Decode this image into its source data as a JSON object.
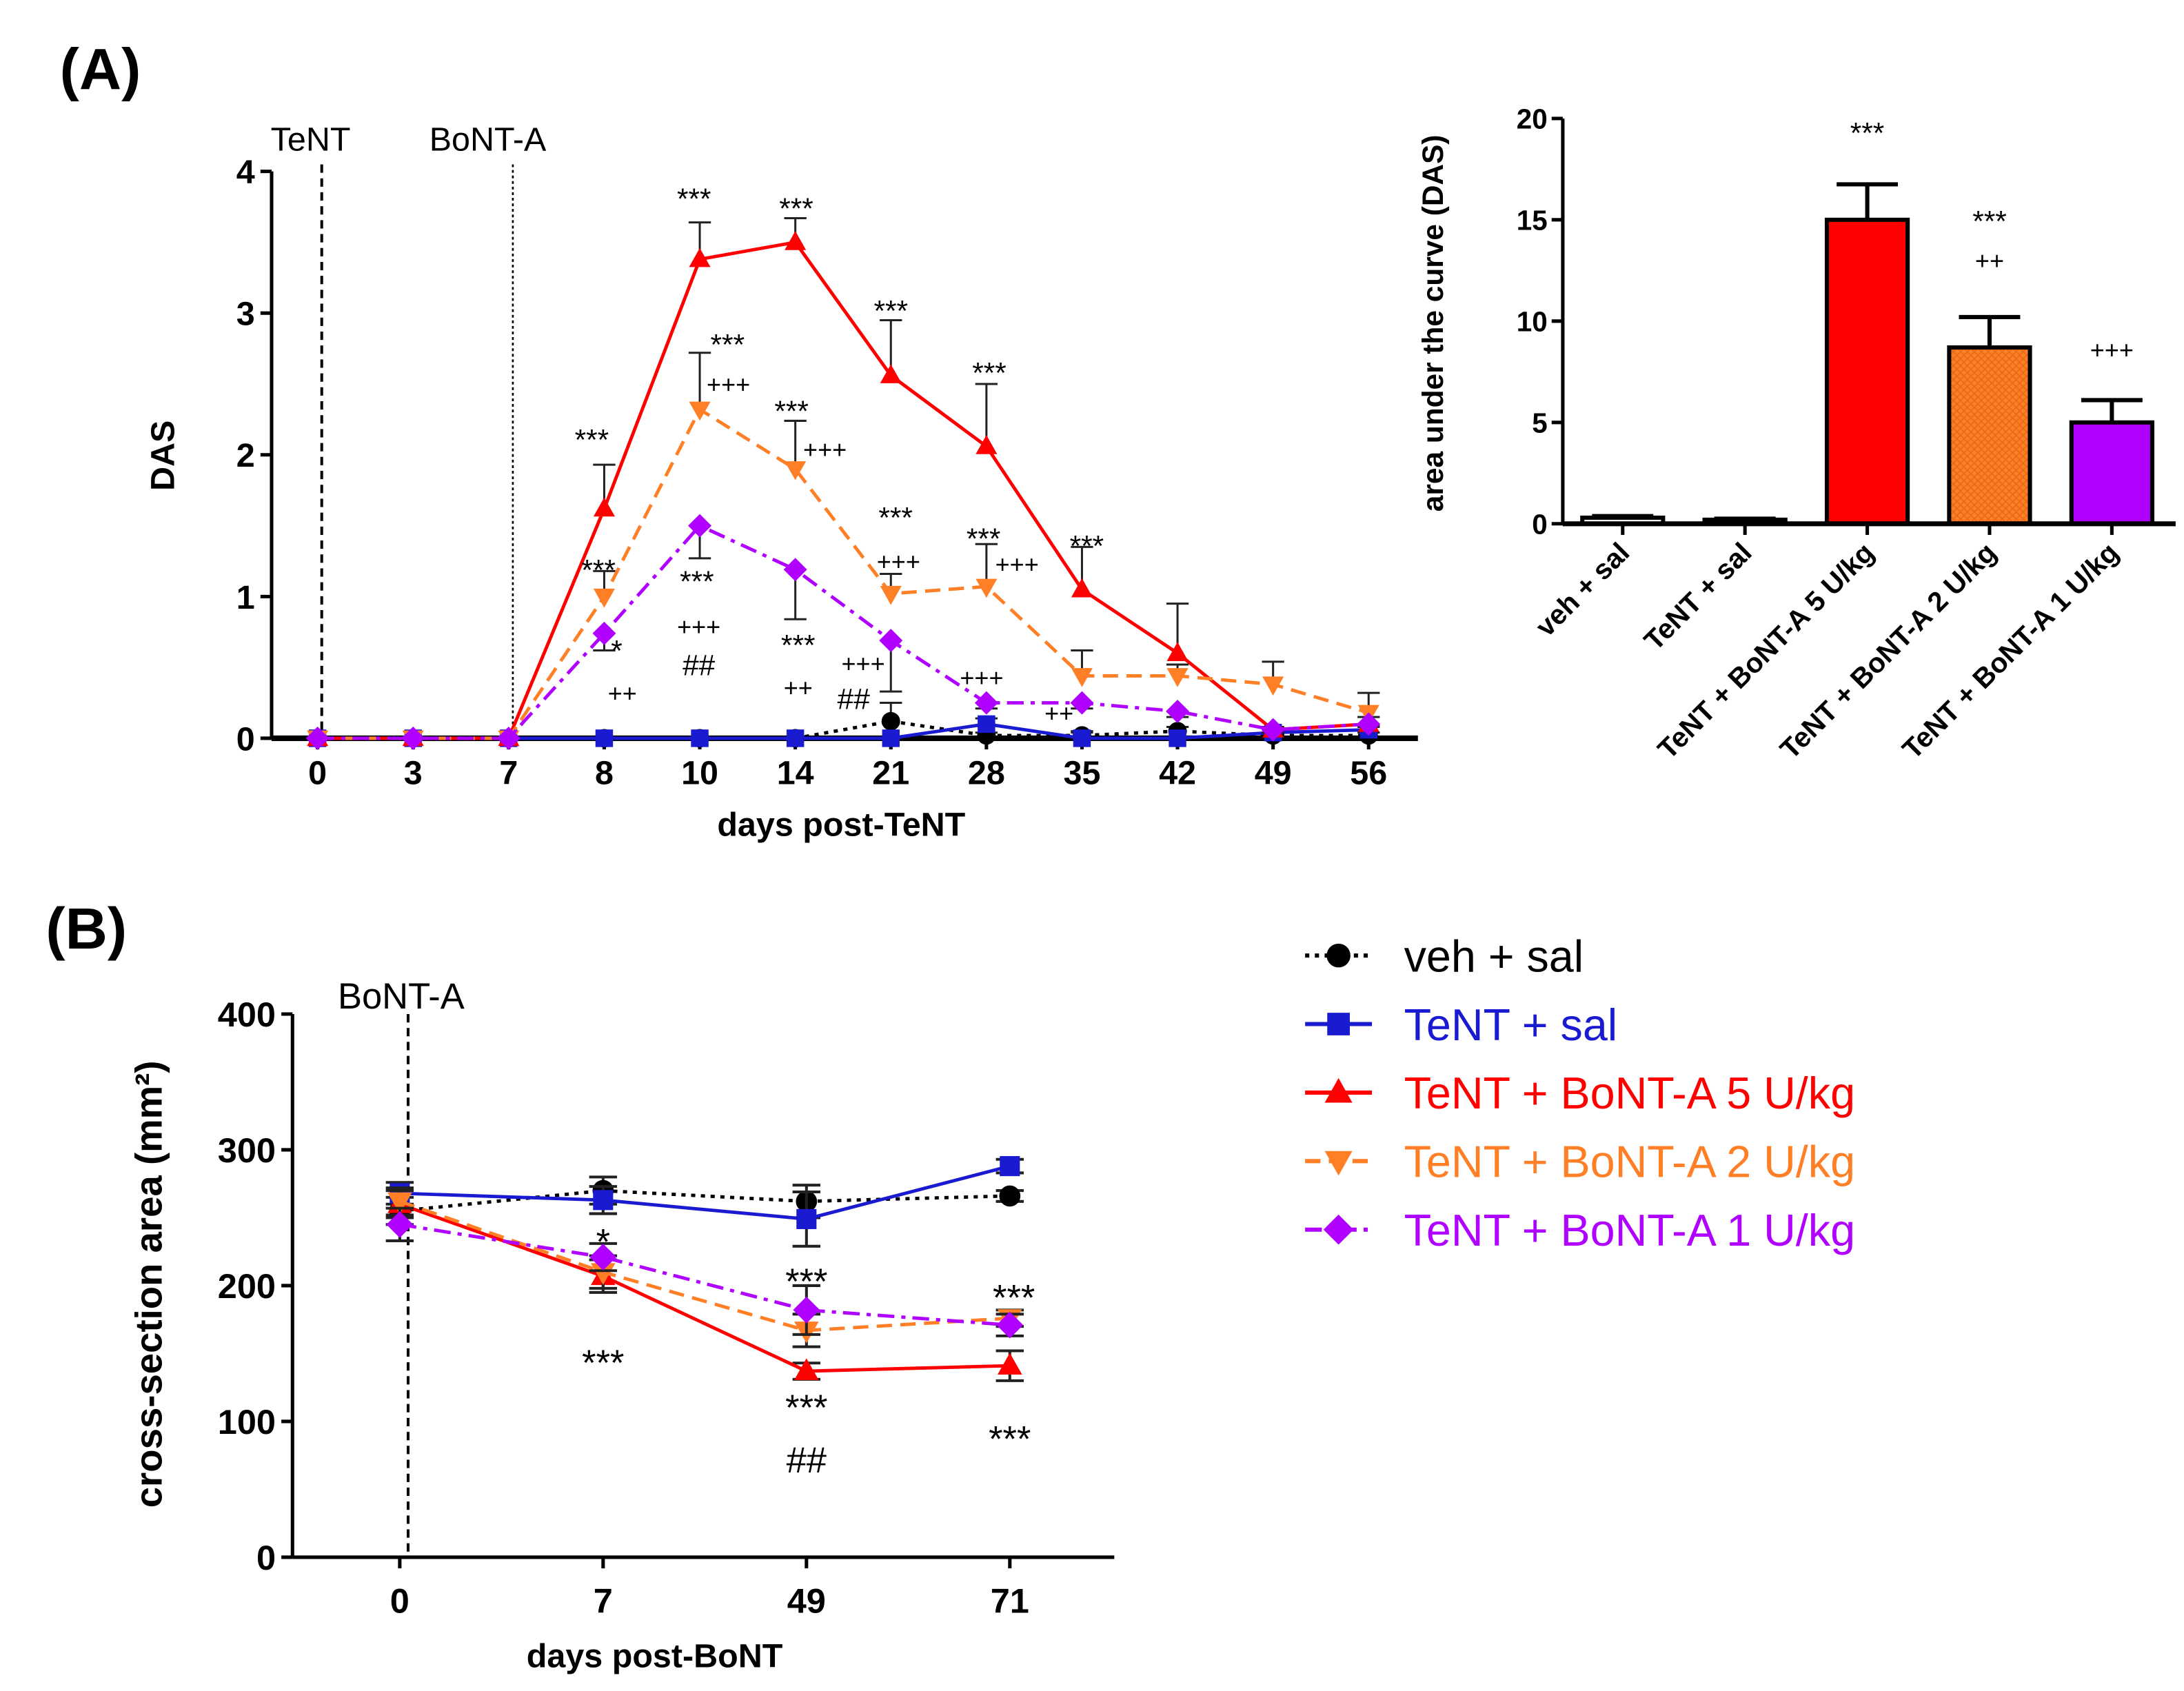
{
  "panels": {
    "a_label": "(A)",
    "b_label": "(B)"
  },
  "chart_data": [
    {
      "type": "line",
      "title": "",
      "xlabel": "days post-TeNT",
      "ylabel": "DAS",
      "categories": [
        "0",
        "3",
        "7",
        "8",
        "10",
        "14",
        "21",
        "28",
        "35",
        "42",
        "49",
        "56"
      ],
      "ylim": [
        0,
        4
      ],
      "yticks": [
        0,
        1,
        2,
        3,
        4
      ],
      "vlines": [
        {
          "x": "0",
          "label": "TeNT",
          "style": "dashed"
        },
        {
          "x": "7",
          "label": "BoNT-A",
          "style": "dotted"
        }
      ],
      "series": [
        {
          "name": "veh + sal",
          "color": "#000000",
          "marker": "circle",
          "dash": "dotted",
          "values": [
            0,
            0,
            0,
            0,
            0,
            0,
            0.12,
            0.02,
            0.02,
            0.05,
            0.02,
            0.02
          ],
          "err_upper": [
            0,
            0,
            0,
            0,
            0,
            0,
            0.13,
            0.02,
            0.02,
            0.03,
            0.02,
            0.02
          ],
          "err_lower": [
            0,
            0,
            0,
            0,
            0,
            0,
            0,
            0,
            0,
            0,
            0,
            0
          ]
        },
        {
          "name": "TeNT + sal",
          "color": "#1a1ad0",
          "marker": "square",
          "dash": "solid",
          "values": [
            0,
            0,
            0,
            0,
            0,
            0,
            0,
            0.1,
            0,
            0,
            0.04,
            0.06
          ],
          "err_upper": [
            0,
            0,
            0,
            0,
            0,
            0,
            0,
            0.04,
            0.05,
            0,
            0.02,
            0.03
          ],
          "err_lower": [
            0,
            0,
            0,
            0,
            0,
            0,
            0,
            0,
            0,
            0,
            0,
            0
          ]
        },
        {
          "name": "TeNT + BoNT-A 5 U/kg",
          "color": "#ff0000",
          "marker": "triangle-up",
          "dash": "solid",
          "values": [
            0,
            0,
            0,
            1.62,
            3.38,
            3.5,
            2.56,
            2.06,
            1.05,
            0.6,
            0.06,
            0.1
          ],
          "err_upper": [
            0,
            0,
            0,
            0.31,
            0.26,
            0.17,
            0.39,
            0.44,
            0.3,
            0.35,
            0.02,
            0.05
          ],
          "err_lower": [
            0,
            0,
            0,
            0,
            0,
            0,
            0,
            0,
            0,
            0,
            0,
            0
          ]
        },
        {
          "name": "TeNT + BoNT-A 2 U/kg",
          "color": "#ff7f27",
          "marker": "triangle-down",
          "dash": "dashed",
          "values": [
            0,
            0,
            0,
            1.0,
            2.32,
            1.9,
            1.02,
            1.07,
            0.44,
            0.44,
            0.38,
            0.18
          ],
          "err_upper": [
            0,
            0,
            0,
            0.18,
            0.4,
            0.34,
            0.14,
            0.3,
            0.18,
            0.08,
            0.16,
            0.14
          ],
          "err_lower": [
            0,
            0,
            0,
            0,
            0,
            0,
            0,
            0,
            0,
            0,
            0,
            0
          ]
        },
        {
          "name": "TeNT + BoNT-A 1 U/kg",
          "color": "#b000ff",
          "marker": "diamond",
          "dash": "dash-dot",
          "values": [
            0,
            0,
            0,
            0.74,
            1.5,
            1.19,
            0.69,
            0.25,
            0.25,
            0.19,
            0.06,
            0.1
          ],
          "err_upper": [
            0,
            0,
            0,
            0,
            0,
            0,
            0,
            0,
            0,
            0,
            0,
            0
          ],
          "err_lower": [
            0,
            0,
            0,
            0.12,
            0.23,
            0.35,
            0.36,
            0.04,
            0.04,
            0.04,
            0.02,
            0.02
          ]
        }
      ],
      "annotations": [
        {
          "text": "***",
          "x_index": 2.87,
          "y": 2.16
        },
        {
          "text": "***",
          "x_index": 3.94,
          "y": 3.86
        },
        {
          "text": "***",
          "x_index": 5.01,
          "y": 3.79
        },
        {
          "text": "***",
          "x_index": 6.0,
          "y": 3.07
        },
        {
          "text": "***",
          "x_index": 7.03,
          "y": 2.63
        },
        {
          "text": "***",
          "x_index": 8.05,
          "y": 1.41
        },
        {
          "text": "***",
          "x_index": 4.29,
          "y": 2.83
        },
        {
          "text": "+++",
          "x_index": 4.3,
          "y": 2.5
        },
        {
          "text": "***",
          "x_index": 4.96,
          "y": 2.36
        },
        {
          "text": "+++",
          "x_index": 5.31,
          "y": 2.04
        },
        {
          "text": "***",
          "x_index": 6.05,
          "y": 1.61
        },
        {
          "text": "+++",
          "x_index": 6.08,
          "y": 1.25
        },
        {
          "text": "***",
          "x_index": 6.97,
          "y": 1.46
        },
        {
          "text": "+++",
          "x_index": 7.32,
          "y": 1.23
        },
        {
          "text": "***",
          "x_index": 2.94,
          "y": 1.24
        },
        {
          "text": "*",
          "x_index": 3.13,
          "y": 0.67
        },
        {
          "text": "++",
          "x_index": 3.19,
          "y": 0.32
        },
        {
          "text": "***",
          "x_index": 3.97,
          "y": 1.16
        },
        {
          "text": "+++",
          "x_index": 3.99,
          "y": 0.79
        },
        {
          "text": "##",
          "x_index": 3.99,
          "y": 0.52
        },
        {
          "text": "***",
          "x_index": 5.03,
          "y": 0.71
        },
        {
          "text": "++",
          "x_index": 5.03,
          "y": 0.36
        },
        {
          "text": "+++",
          "x_index": 5.71,
          "y": 0.53
        },
        {
          "text": "##",
          "x_index": 5.61,
          "y": 0.28
        },
        {
          "text": "+++",
          "x_index": 6.95,
          "y": 0.43
        },
        {
          "text": "++",
          "x_index": 7.76,
          "y": 0.18
        }
      ]
    },
    {
      "type": "bar",
      "title": "",
      "xlabel": "",
      "ylabel": "area under the curve (DAS)",
      "categories": [
        "veh + sal",
        "TeNT + sal",
        "TeNT + BoNT-A 5 U/kg",
        "TeNT + BoNT-A 2 U/kg",
        "TeNT + BoNT-A 1 U/kg"
      ],
      "values": [
        0.3,
        0.2,
        15.0,
        8.7,
        5.0
      ],
      "err_upper": [
        0.08,
        0.05,
        1.75,
        1.5,
        1.1
      ],
      "colors": [
        "#ffffff",
        "#ffffff",
        "#ff0000",
        "#ff7f27",
        "#b000ff"
      ],
      "ylim": [
        0,
        20
      ],
      "yticks": [
        0,
        5,
        10,
        15,
        20
      ],
      "annotations": [
        {
          "text": "***",
          "x_index": 2,
          "y": 19.66
        },
        {
          "text": "***",
          "x_index": 3,
          "y": 15.3
        },
        {
          "text": "++",
          "x_index": 3,
          "y": 13.0
        },
        {
          "text": "+++",
          "x_index": 4,
          "y": 8.6
        }
      ]
    },
    {
      "type": "line",
      "title": "",
      "xlabel": "days post-BoNT",
      "ylabel": "cross-section area (mm²)",
      "categories": [
        "0",
        "7",
        "49",
        "71"
      ],
      "ylim": [
        0,
        400
      ],
      "yticks": [
        0,
        100,
        200,
        300,
        400
      ],
      "legend": "right",
      "vlines": [
        {
          "x": "0",
          "label": "BoNT-A",
          "style": "dashed"
        }
      ],
      "series": [
        {
          "name": "veh + sal",
          "color": "#000000",
          "marker": "circle",
          "dash": "dotted",
          "values": [
            255,
            270,
            262,
            266
          ],
          "err_upper": [
            10,
            10,
            12,
            4
          ],
          "err_lower": [
            10,
            10,
            12,
            4
          ]
        },
        {
          "name": "TeNT + sal",
          "color": "#1a1ad0",
          "marker": "square",
          "dash": "solid",
          "values": [
            268,
            263,
            249,
            288
          ],
          "err_upper": [
            8,
            10,
            20,
            5
          ],
          "err_lower": [
            8,
            10,
            20,
            5
          ]
        },
        {
          "name": "TeNT + BoNT-A 5 U/kg",
          "color": "#ff0000",
          "marker": "triangle-up",
          "dash": "solid",
          "values": [
            260,
            207,
            137,
            141
          ],
          "err_upper": [
            10,
            12,
            6,
            11
          ],
          "err_lower": [
            10,
            12,
            6,
            11
          ]
        },
        {
          "name": "TeNT + BoNT-A 2 U/kg",
          "color": "#ff7f27",
          "marker": "triangle-down",
          "dash": "dashed",
          "values": [
            262,
            210,
            167,
            176
          ],
          "err_upper": [
            10,
            12,
            12,
            6
          ],
          "err_lower": [
            10,
            12,
            12,
            6
          ]
        },
        {
          "name": "TeNT + BoNT-A 1 U/kg",
          "color": "#b000ff",
          "marker": "diamond",
          "dash": "dash-dot",
          "values": [
            245,
            221,
            182,
            171
          ],
          "err_upper": [
            12,
            10,
            18,
            8
          ],
          "err_lower": [
            12,
            10,
            18,
            8
          ]
        }
      ],
      "annotations": [
        {
          "text": "*",
          "x_index": 1,
          "y": 239
        },
        {
          "text": "***",
          "x_index": 1,
          "y": 150
        },
        {
          "text": "***",
          "x_index": 2,
          "y": 210
        },
        {
          "text": "***",
          "x_index": 2,
          "y": 117
        },
        {
          "text": "##",
          "x_index": 2,
          "y": 72
        },
        {
          "text": "***",
          "x_index": 3.02,
          "y": 198
        },
        {
          "text": "***",
          "x_index": 3,
          "y": 94
        }
      ]
    }
  ]
}
